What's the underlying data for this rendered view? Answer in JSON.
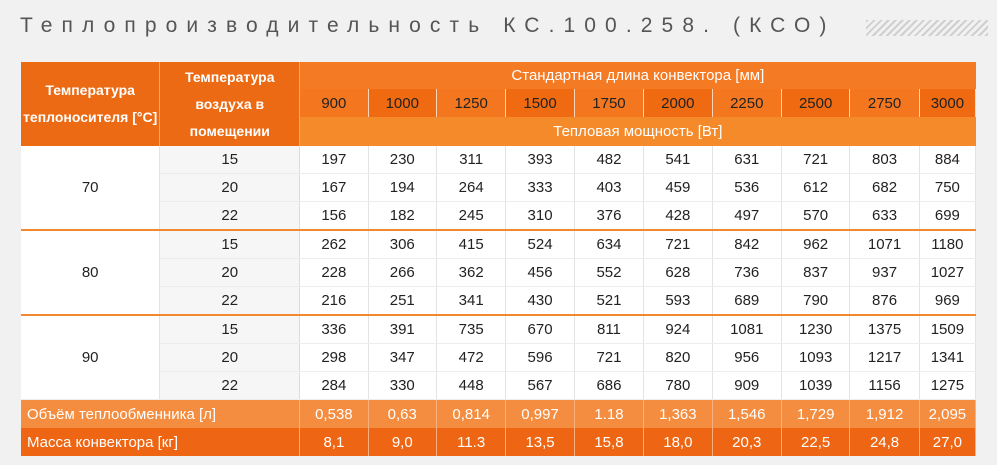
{
  "header": {
    "title": "Теплопроизводительность КС.100.258. (КСО)"
  },
  "table": {
    "col_coolant": "Температура теплоносителя [°C]",
    "col_air": "Температура воздуха в помещении",
    "length_title": "Стандартная длина конвектора [мм]",
    "power_title": "Тепловая мощность [Вт]",
    "lengths": [
      "900",
      "1000",
      "1250",
      "1500",
      "1750",
      "2000",
      "2250",
      "2500",
      "2750",
      "3000"
    ],
    "groups": [
      {
        "coolant": "70",
        "rows": [
          {
            "air": "15",
            "values": [
              "197",
              "230",
              "311",
              "393",
              "482",
              "541",
              "631",
              "721",
              "803",
              "884"
            ]
          },
          {
            "air": "20",
            "values": [
              "167",
              "194",
              "264",
              "333",
              "403",
              "459",
              "536",
              "612",
              "682",
              "750"
            ]
          },
          {
            "air": "22",
            "values": [
              "156",
              "182",
              "245",
              "310",
              "376",
              "428",
              "497",
              "570",
              "633",
              "699"
            ]
          }
        ]
      },
      {
        "coolant": "80",
        "rows": [
          {
            "air": "15",
            "values": [
              "262",
              "306",
              "415",
              "524",
              "634",
              "721",
              "842",
              "962",
              "1071",
              "1180"
            ]
          },
          {
            "air": "20",
            "values": [
              "228",
              "266",
              "362",
              "456",
              "552",
              "628",
              "736",
              "837",
              "937",
              "1027"
            ]
          },
          {
            "air": "22",
            "values": [
              "216",
              "251",
              "341",
              "430",
              "521",
              "593",
              "689",
              "790",
              "876",
              "969"
            ]
          }
        ]
      },
      {
        "coolant": "90",
        "rows": [
          {
            "air": "15",
            "values": [
              "336",
              "391",
              "735",
              "670",
              "811",
              "924",
              "1081",
              "1230",
              "1375",
              "1509"
            ]
          },
          {
            "air": "20",
            "values": [
              "298",
              "347",
              "472",
              "596",
              "721",
              "820",
              "956",
              "1093",
              "1217",
              "1341"
            ]
          },
          {
            "air": "22",
            "values": [
              "284",
              "330",
              "448",
              "567",
              "686",
              "780",
              "909",
              "1039",
              "1156",
              "1275"
            ]
          }
        ]
      }
    ],
    "volume": {
      "label": "Объём теплообменника [л]",
      "values": [
        "0,538",
        "0,63",
        "0,814",
        "0,997",
        "1.18",
        "1,363",
        "1,546",
        "1,729",
        "1,912",
        "2,095"
      ]
    },
    "mass": {
      "label": "Масса конвектора [кг]",
      "values": [
        "8,1",
        "9,0",
        "11.3",
        "13,5",
        "15,8",
        "18,0",
        "20,3",
        "22,5",
        "24,8",
        "27,0"
      ]
    }
  },
  "colors": {
    "accent": "#f47a24",
    "accent_dark": "#ee6614"
  }
}
